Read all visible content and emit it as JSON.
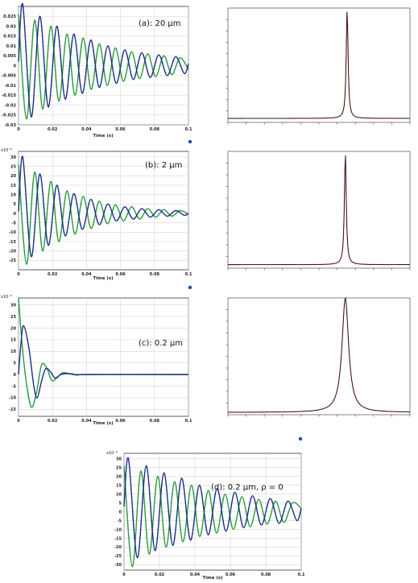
{
  "colors": {
    "series_green": "#2a9a3e",
    "series_blue": "#1b2f86",
    "spectrum_black": "#111111",
    "spectrum_red": "#c0302a",
    "grid": "#d6d6d6",
    "frame": "#333333",
    "marker": "#1f4fa0"
  },
  "chart_data": [
    {
      "type": "line",
      "title": "(a): 20 μm",
      "xlabel": "Time (s)",
      "ylabel": "",
      "xlim": [
        0,
        0.1
      ],
      "ylim": [
        -0.03,
        0.03
      ],
      "xticks": [
        0,
        0.02,
        0.04,
        0.06,
        0.08,
        0.1
      ],
      "xticklabels": [
        "0",
        "0.02",
        "0.04",
        "0.06",
        "0.08",
        "0.1"
      ],
      "yticks": [
        0.025,
        0.02,
        0.015,
        0.01,
        0.005,
        0,
        -0.005,
        -0.01,
        -0.015,
        -0.02,
        -0.025,
        -0.03
      ],
      "yticklabels": [
        "0.025",
        "0.02",
        "0.015",
        "0.01",
        "0.005",
        "0",
        "-0.005",
        "-0.01",
        "-0.015",
        "-0.02",
        "-0.025",
        "-0.03"
      ],
      "exponent_label": "",
      "grid": true,
      "series": [
        {
          "color": "green",
          "points": [
            [
              0,
              0.026
            ],
            [
              0.0047,
              -0.027
            ],
            [
              0.0095,
              0.023
            ],
            [
              0.0142,
              -0.022
            ],
            [
              0.019,
              0.02
            ],
            [
              0.0237,
              -0.018
            ],
            [
              0.0285,
              0.016
            ],
            [
              0.0332,
              -0.015
            ],
            [
              0.038,
              0.014
            ],
            [
              0.0427,
              -0.012
            ],
            [
              0.0475,
              0.011
            ],
            [
              0.0522,
              -0.01
            ],
            [
              0.057,
              0.009
            ],
            [
              0.0617,
              -0.008
            ],
            [
              0.0665,
              0.007
            ],
            [
              0.0712,
              -0.0065
            ],
            [
              0.076,
              0.006
            ],
            [
              0.0807,
              -0.0055
            ],
            [
              0.0855,
              0.005
            ],
            [
              0.0902,
              -0.0045
            ],
            [
              0.095,
              0.004
            ],
            [
              0.1,
              -0.002
            ]
          ]
        },
        {
          "color": "blue",
          "points": [
            [
              0,
              0.002
            ],
            [
              0.0025,
              0.031
            ],
            [
              0.0075,
              -0.026
            ],
            [
              0.0125,
              0.025
            ],
            [
              0.0175,
              -0.021
            ],
            [
              0.0225,
              0.02
            ],
            [
              0.0275,
              -0.017
            ],
            [
              0.0325,
              0.016
            ],
            [
              0.0375,
              -0.014
            ],
            [
              0.0425,
              0.013
            ],
            [
              0.0475,
              -0.011
            ],
            [
              0.0525,
              0.01
            ],
            [
              0.0575,
              -0.009
            ],
            [
              0.0625,
              0.008
            ],
            [
              0.0675,
              -0.007
            ],
            [
              0.0725,
              0.0065
            ],
            [
              0.0775,
              -0.006
            ],
            [
              0.0825,
              0.0055
            ],
            [
              0.0875,
              -0.005
            ],
            [
              0.0925,
              0.0045
            ],
            [
              0.0975,
              -0.004
            ],
            [
              0.1,
              0.001
            ]
          ]
        }
      ]
    },
    {
      "type": "line",
      "xlabel": "",
      "ylabel": "",
      "xlim": [
        0,
        1
      ],
      "ylim": [
        0,
        1
      ],
      "peak_x": 0.655,
      "peak_width": 0.006,
      "baseline": 0.035,
      "xticks": [
        0,
        0.1,
        0.2,
        0.3,
        0.4,
        0.5,
        0.6,
        0.7,
        0.8,
        0.9,
        1
      ],
      "yticks": [
        0.1,
        0.2,
        0.3,
        0.4,
        0.5,
        0.6,
        0.7,
        0.8,
        0.9
      ],
      "grid": false
    },
    {
      "type": "line",
      "title": "(b): 2 μm",
      "xlabel": "Time (s)",
      "ylabel": "",
      "xlim": [
        0,
        0.1
      ],
      "ylim": [
        -30,
        33
      ],
      "xticks": [
        0,
        0.02,
        0.04,
        0.06,
        0.08,
        0.1
      ],
      "xticklabels": [
        "0",
        "0.02",
        "0.04",
        "0.06",
        "0.08",
        "0.1"
      ],
      "yticks": [
        30,
        25,
        20,
        15,
        10,
        5,
        0,
        -5,
        -10,
        -15,
        -20,
        -25
      ],
      "yticklabels": [
        "30",
        "25",
        "20",
        "15",
        "10",
        "5",
        "0",
        "-5",
        "-10",
        "-15",
        "-20",
        "-25"
      ],
      "exponent_label": "x10⁻⁶",
      "grid": true,
      "series": [
        {
          "color": "green",
          "points": [
            [
              0,
              26
            ],
            [
              0.0047,
              -27
            ],
            [
              0.0095,
              22
            ],
            [
              0.0142,
              -20
            ],
            [
              0.019,
              17
            ],
            [
              0.0237,
              -15
            ],
            [
              0.0285,
              12
            ],
            [
              0.0332,
              -11
            ],
            [
              0.038,
              9
            ],
            [
              0.0427,
              -8
            ],
            [
              0.0475,
              6.5
            ],
            [
              0.0522,
              -5.5
            ],
            [
              0.057,
              4.5
            ],
            [
              0.0617,
              -4
            ],
            [
              0.0665,
              3.5
            ],
            [
              0.0712,
              -3
            ],
            [
              0.076,
              2.5
            ],
            [
              0.0807,
              -2
            ],
            [
              0.0855,
              2
            ],
            [
              0.0902,
              -1.5
            ],
            [
              0.095,
              1.5
            ],
            [
              0.1,
              -0.5
            ]
          ]
        },
        {
          "color": "blue",
          "points": [
            [
              0,
              1
            ],
            [
              0.0025,
              30
            ],
            [
              0.0075,
              -23
            ],
            [
              0.0125,
              21
            ],
            [
              0.0175,
              -17
            ],
            [
              0.0225,
              15
            ],
            [
              0.0275,
              -12
            ],
            [
              0.0325,
              10.5
            ],
            [
              0.0375,
              -8.5
            ],
            [
              0.0425,
              7.5
            ],
            [
              0.0475,
              -6
            ],
            [
              0.0525,
              5
            ],
            [
              0.0575,
              -4
            ],
            [
              0.0625,
              3.5
            ],
            [
              0.0675,
              -3
            ],
            [
              0.0725,
              2.5
            ],
            [
              0.0775,
              -2
            ],
            [
              0.0825,
              2
            ],
            [
              0.0875,
              -1.5
            ],
            [
              0.0925,
              1.5
            ],
            [
              0.0975,
              -1
            ],
            [
              0.1,
              0
            ]
          ]
        }
      ]
    },
    {
      "type": "line",
      "xlabel": "",
      "ylabel": "",
      "xlim": [
        0,
        1
      ],
      "ylim": [
        0,
        1
      ],
      "peak_x": 0.645,
      "peak_width": 0.006,
      "baseline": 0.03,
      "xticks": [
        0,
        0.1,
        0.2,
        0.3,
        0.4,
        0.5,
        0.6,
        0.7,
        0.8,
        0.9,
        1
      ],
      "yticks": [
        0.1,
        0.2,
        0.3,
        0.4,
        0.5,
        0.6,
        0.7,
        0.8,
        0.9
      ],
      "grid": false
    },
    {
      "type": "line",
      "title": "(c): 0.2 μm",
      "xlabel": "Time (s)",
      "ylabel": "",
      "xlim": [
        0,
        0.1
      ],
      "ylim": [
        -18,
        33
      ],
      "xticks": [
        0,
        0.02,
        0.04,
        0.06,
        0.08,
        0.1
      ],
      "xticklabels": [
        "0",
        "0.02",
        "0.04",
        "0.06",
        "0.08",
        "0.1"
      ],
      "yticks": [
        30,
        25,
        20,
        15,
        10,
        5,
        0,
        -5,
        -10,
        -15
      ],
      "yticklabels": [
        "30",
        "25",
        "20",
        "15",
        "10",
        "5",
        "0",
        "-5",
        "-10",
        "-15"
      ],
      "exponent_label": "x10⁻⁶",
      "grid": true,
      "series": [
        {
          "color": "green",
          "points": [
            [
              0,
              33
            ],
            [
              0.002,
              14
            ],
            [
              0.0045,
              -3
            ],
            [
              0.0075,
              -14
            ],
            [
              0.0105,
              -8
            ],
            [
              0.0135,
              4
            ],
            [
              0.0165,
              3
            ],
            [
              0.0195,
              -2.5
            ],
            [
              0.0225,
              -1.5
            ],
            [
              0.026,
              0.8
            ],
            [
              0.03,
              0.3
            ],
            [
              0.034,
              -0.2
            ],
            [
              0.04,
              0
            ],
            [
              0.1,
              0
            ]
          ]
        },
        {
          "color": "blue",
          "points": [
            [
              0,
              0
            ],
            [
              0.0015,
              14
            ],
            [
              0.003,
              21
            ],
            [
              0.006,
              12
            ],
            [
              0.009,
              -5
            ],
            [
              0.011,
              -10
            ],
            [
              0.0135,
              -3
            ],
            [
              0.016,
              2.5
            ],
            [
              0.019,
              1
            ],
            [
              0.0215,
              -1.5
            ],
            [
              0.025,
              0
            ],
            [
              0.03,
              0.4
            ],
            [
              0.035,
              -0.2
            ],
            [
              0.04,
              0
            ],
            [
              0.1,
              0
            ]
          ]
        }
      ]
    },
    {
      "type": "line",
      "xlabel": "",
      "ylabel": "",
      "xlim": [
        0,
        1
      ],
      "ylim": [
        0,
        1
      ],
      "peak_x": 0.645,
      "peak_width": 0.022,
      "baseline": 0.02,
      "xticks": [
        0,
        0.1,
        0.2,
        0.3,
        0.4,
        0.5,
        0.6,
        0.7,
        0.8,
        0.9,
        1
      ],
      "yticks": [
        0.1,
        0.2,
        0.3,
        0.4,
        0.5,
        0.6,
        0.7,
        0.8,
        0.9
      ],
      "grid": false
    },
    {
      "type": "line",
      "title": "(d): 0.2 μm, ρ = 0",
      "xlabel": "Time (s)",
      "ylabel": "",
      "xlim": [
        0,
        0.1
      ],
      "ylim": [
        -33,
        33
      ],
      "xticks": [
        0,
        0.02,
        0.04,
        0.06,
        0.08,
        0.1
      ],
      "xticklabels": [
        "0",
        "0.02",
        "0.04",
        "0.06",
        "0.08",
        "0.1"
      ],
      "yticks": [
        30,
        25,
        20,
        15,
        10,
        5,
        0,
        -5,
        -10,
        -15,
        -20,
        -25,
        -30
      ],
      "yticklabels": [
        "30",
        "25",
        "20",
        "15",
        "10",
        "5",
        "0",
        "-5",
        "-10",
        "-15",
        "-20",
        "-25",
        "-30"
      ],
      "exponent_label": "x10⁻⁶",
      "grid": true,
      "series": [
        {
          "color": "green",
          "points": [
            [
              0,
              26
            ],
            [
              0.0047,
              -31
            ],
            [
              0.0095,
              23
            ],
            [
              0.0142,
              -24
            ],
            [
              0.019,
              20
            ],
            [
              0.0237,
              -20
            ],
            [
              0.0285,
              17
            ],
            [
              0.0332,
              -17
            ],
            [
              0.038,
              15
            ],
            [
              0.0427,
              -14
            ],
            [
              0.0475,
              12
            ],
            [
              0.0522,
              -12
            ],
            [
              0.057,
              10
            ],
            [
              0.0617,
              -10
            ],
            [
              0.0665,
              8.5
            ],
            [
              0.0712,
              -8.5
            ],
            [
              0.076,
              7
            ],
            [
              0.0807,
              -7
            ],
            [
              0.0855,
              6
            ],
            [
              0.0902,
              -6
            ],
            [
              0.095,
              5
            ],
            [
              0.1,
              2
            ]
          ]
        },
        {
          "color": "blue",
          "points": [
            [
              0,
              3
            ],
            [
              0.0025,
              30
            ],
            [
              0.0075,
              -26
            ],
            [
              0.0125,
              26
            ],
            [
              0.0175,
              -22
            ],
            [
              0.0225,
              22
            ],
            [
              0.0275,
              -19
            ],
            [
              0.0325,
              19
            ],
            [
              0.0375,
              -16
            ],
            [
              0.0425,
              15
            ],
            [
              0.0475,
              -13
            ],
            [
              0.0525,
              13
            ],
            [
              0.0575,
              -11
            ],
            [
              0.0625,
              11
            ],
            [
              0.0675,
              -9
            ],
            [
              0.0725,
              9
            ],
            [
              0.0775,
              -7.5
            ],
            [
              0.0825,
              7.5
            ],
            [
              0.0875,
              -6.5
            ],
            [
              0.0925,
              6
            ],
            [
              0.0975,
              -5
            ],
            [
              0.1,
              2
            ]
          ]
        }
      ]
    }
  ]
}
